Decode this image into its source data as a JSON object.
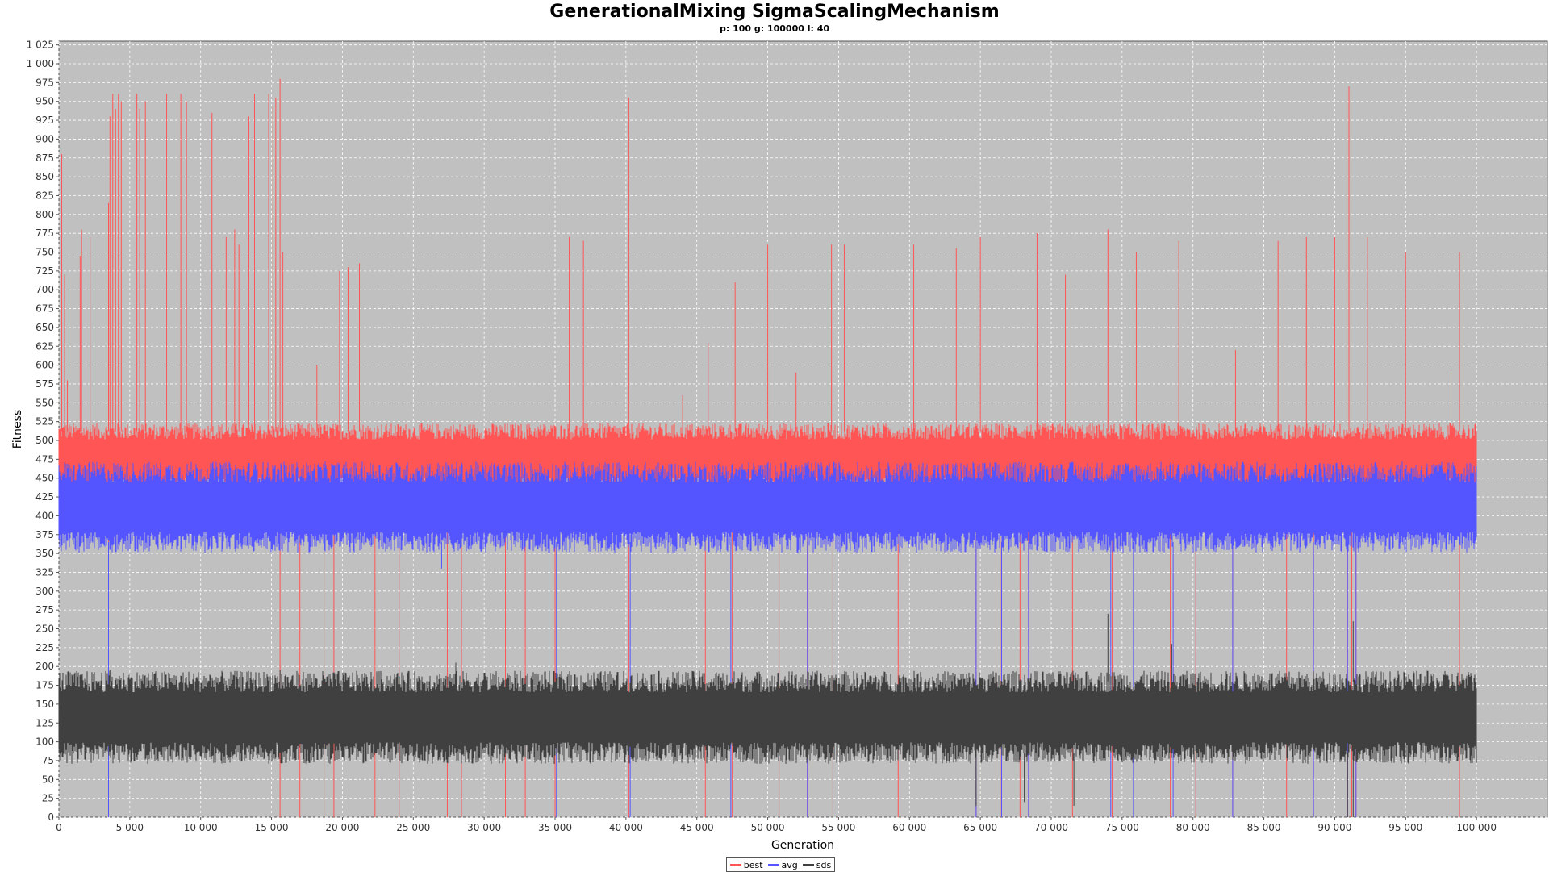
{
  "chart_data": {
    "type": "line",
    "title": "GenerationalMixing SigmaScalingMechanism",
    "subtitle": "p: 100 g: 100000 l: 40",
    "xlabel": "Generation",
    "ylabel": "Fitness",
    "xlim": [
      0,
      105000
    ],
    "ylim": [
      0,
      1030
    ],
    "x_ticks": [
      "0",
      "5 000",
      "10 000",
      "15 000",
      "20 000",
      "25 000",
      "30 000",
      "35 000",
      "40 000",
      "45 000",
      "50 000",
      "55 000",
      "60 000",
      "65 000",
      "70 000",
      "75 000",
      "80 000",
      "85 000",
      "90 000",
      "95 000",
      "100 000"
    ],
    "y_ticks": [
      "0",
      "25",
      "50",
      "75",
      "100",
      "125",
      "150",
      "175",
      "200",
      "225",
      "250",
      "275",
      "300",
      "325",
      "350",
      "375",
      "400",
      "425",
      "450",
      "475",
      "500",
      "525",
      "550",
      "575",
      "600",
      "625",
      "650",
      "675",
      "700",
      "725",
      "750",
      "775",
      "800",
      "825",
      "850",
      "875",
      "900",
      "925",
      "950",
      "975",
      "1 000",
      "1 025"
    ],
    "grid": true,
    "legend_position": "bottom-center",
    "plot_background": "#c0c0c0",
    "series": [
      {
        "name": "best",
        "color": "#ff5555",
        "band_low": 440,
        "band_high": 512,
        "spike_up": [
          [
            200,
            880
          ],
          [
            400,
            720
          ],
          [
            600,
            580
          ],
          [
            1500,
            745
          ],
          [
            1600,
            780
          ],
          [
            2200,
            770
          ],
          [
            3500,
            815
          ],
          [
            3600,
            930
          ],
          [
            3800,
            960
          ],
          [
            4000,
            940
          ],
          [
            4200,
            960
          ],
          [
            4400,
            950
          ],
          [
            5500,
            960
          ],
          [
            5700,
            940
          ],
          [
            6100,
            950
          ],
          [
            7600,
            960
          ],
          [
            8600,
            960
          ],
          [
            9000,
            950
          ],
          [
            10800,
            935
          ],
          [
            11800,
            770
          ],
          [
            12400,
            780
          ],
          [
            12700,
            760
          ],
          [
            13400,
            930
          ],
          [
            13800,
            960
          ],
          [
            14800,
            960
          ],
          [
            15100,
            945
          ],
          [
            15300,
            955
          ],
          [
            15600,
            980
          ],
          [
            15800,
            750
          ],
          [
            18200,
            600
          ],
          [
            19800,
            725
          ],
          [
            20400,
            730
          ],
          [
            21200,
            735
          ],
          [
            36000,
            770
          ],
          [
            37000,
            765
          ],
          [
            40200,
            955
          ],
          [
            44000,
            560
          ],
          [
            45800,
            630
          ],
          [
            47700,
            710
          ],
          [
            50000,
            760
          ],
          [
            52000,
            590
          ],
          [
            54500,
            760
          ],
          [
            55400,
            760
          ],
          [
            60300,
            760
          ],
          [
            63300,
            755
          ],
          [
            65000,
            770
          ],
          [
            69000,
            775
          ],
          [
            71000,
            720
          ],
          [
            74000,
            780
          ],
          [
            76000,
            750
          ],
          [
            79000,
            765
          ],
          [
            83000,
            620
          ],
          [
            86000,
            765
          ],
          [
            88000,
            770
          ],
          [
            90000,
            770
          ],
          [
            91000,
            970
          ],
          [
            92300,
            770
          ],
          [
            95000,
            750
          ],
          [
            98200,
            590
          ],
          [
            98800,
            750
          ]
        ],
        "spike_down": [
          3500,
          15600,
          17000,
          18700,
          19400,
          22300,
          24000,
          27400,
          28400,
          31500,
          32900,
          35000,
          40200,
          45600,
          47500,
          50800,
          52800,
          54600,
          59200,
          64700,
          66400,
          67800,
          68400,
          71500,
          74300,
          78400,
          80200,
          82800,
          86600,
          88500,
          90900,
          91200,
          91500,
          98200,
          98800
        ]
      },
      {
        "name": "avg",
        "color": "#5555ff",
        "band_low": 365,
        "band_high": 458,
        "spike_up": [],
        "spike_down": [
          [
            3500,
            0
          ],
          [
            27000,
            330
          ],
          [
            35100,
            0
          ],
          [
            40300,
            0
          ],
          [
            45500,
            0
          ],
          [
            47400,
            0
          ],
          [
            52800,
            0
          ],
          [
            64700,
            0
          ],
          [
            66500,
            0
          ],
          [
            68400,
            0
          ],
          [
            74200,
            0
          ],
          [
            75800,
            0
          ],
          [
            78600,
            0
          ],
          [
            82800,
            0
          ],
          [
            88500,
            0
          ],
          [
            90900,
            0
          ],
          [
            91500,
            0
          ]
        ]
      },
      {
        "name": "sds",
        "color": "#404040",
        "band_low": 85,
        "band_high": 180,
        "spike_up": [
          [
            3600,
            195
          ],
          [
            15600,
            195
          ],
          [
            28000,
            205
          ],
          [
            74000,
            270
          ],
          [
            78500,
            230
          ],
          [
            91300,
            260
          ]
        ],
        "spike_down": [
          [
            64700,
            15
          ],
          [
            68100,
            20
          ],
          [
            71600,
            15
          ],
          [
            90900,
            0
          ],
          [
            91300,
            0
          ]
        ]
      }
    ]
  }
}
